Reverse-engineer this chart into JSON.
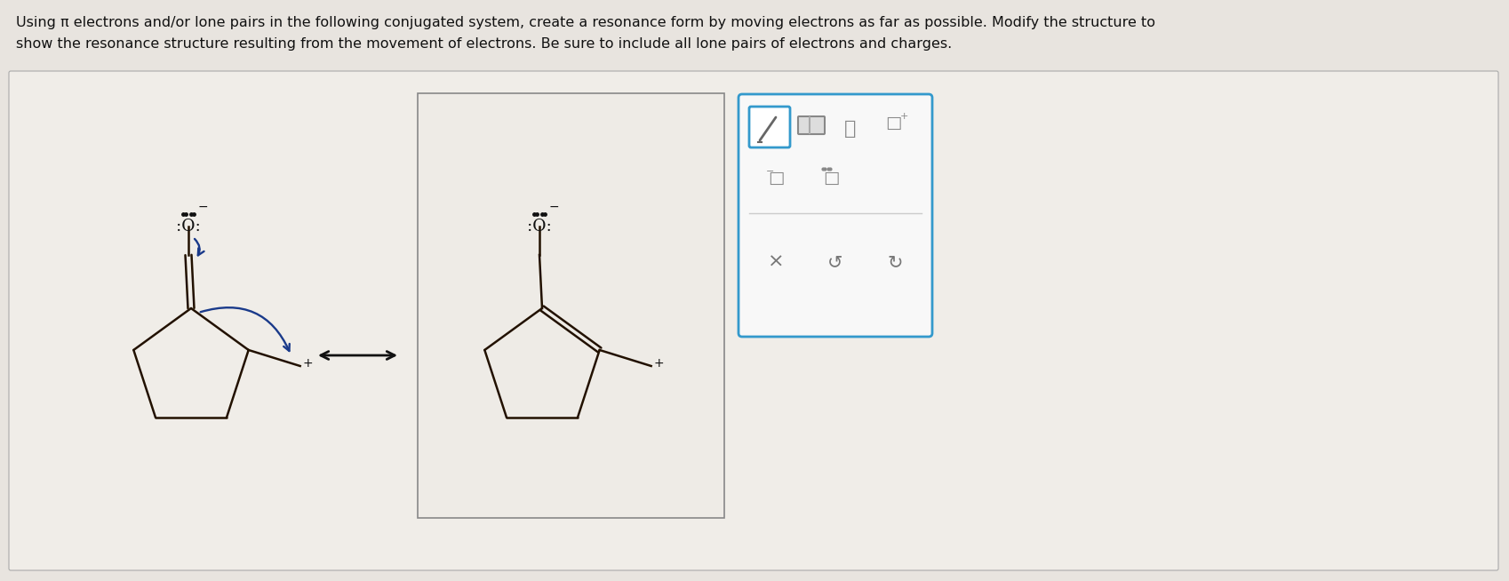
{
  "title_line1": "Using π electrons and/or lone pairs in the following conjugated system, create a resonance form by moving electrons as far as possible. Modify the structure to",
  "title_line2": "show the resonance structure resulting from the movement of electrons. Be sure to include all lone pairs of electrons and charges.",
  "bg_color": "#e8e4df",
  "white_bg": "#f0ede8",
  "box_bg": "#eeebe6",
  "text_color": "#111111",
  "line_color": "#221100",
  "arrow_color": "#1a3a8a",
  "title_fontsize": 11.5,
  "toolbar_border": "#3399cc"
}
